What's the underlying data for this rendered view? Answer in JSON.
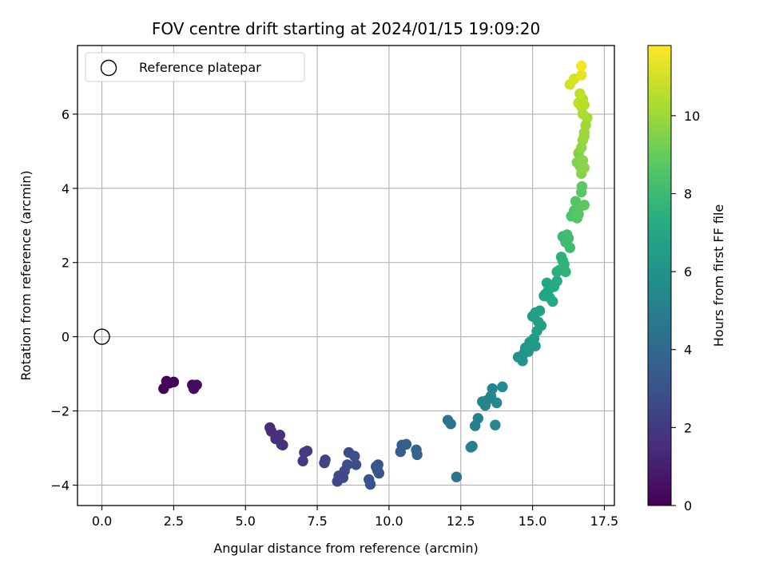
{
  "chart_data": {
    "type": "scatter",
    "title": "FOV centre drift starting at 2024/01/15 19:09:20",
    "xlabel": "Angular distance from reference (arcmin)",
    "ylabel": "Rotation from reference (arcmin)",
    "xlim": [
      -0.85,
      17.85
    ],
    "ylim": [
      -4.55,
      7.85
    ],
    "xticks": [
      0.0,
      2.5,
      5.0,
      7.5,
      10.0,
      12.5,
      15.0,
      17.5
    ],
    "xtick_labels": [
      "0.0",
      "2.5",
      "5.0",
      "7.5",
      "10.0",
      "12.5",
      "15.0",
      "17.5"
    ],
    "yticks": [
      -4,
      -2,
      0,
      2,
      4,
      6
    ],
    "ytick_labels": [
      "−4",
      "−2",
      "0",
      "2",
      "4",
      "6"
    ],
    "grid": true,
    "legend": {
      "placement": "upper-left",
      "entries": [
        "Reference platepar"
      ]
    },
    "reference_point": {
      "x": 0.0,
      "y": 0.0,
      "label": "Reference platepar"
    },
    "colorbar": {
      "label": "Hours from first FF file",
      "colormap": "viridis",
      "range": [
        0,
        11.8
      ],
      "ticks": [
        0,
        2,
        4,
        6,
        8,
        10
      ],
      "tick_labels": [
        "0",
        "2",
        "4",
        "6",
        "8",
        "10"
      ]
    },
    "points": [
      {
        "x": 2.15,
        "y": -1.4,
        "h": 0.05
      },
      {
        "x": 2.25,
        "y": -1.2,
        "h": 0.1
      },
      {
        "x": 2.35,
        "y": -1.25,
        "h": 0.15
      },
      {
        "x": 2.5,
        "y": -1.22,
        "h": 0.2
      },
      {
        "x": 3.15,
        "y": -1.3,
        "h": 0.3
      },
      {
        "x": 3.2,
        "y": -1.4,
        "h": 0.35
      },
      {
        "x": 3.3,
        "y": -1.3,
        "h": 0.4
      },
      {
        "x": 5.85,
        "y": -2.45,
        "h": 1.5
      },
      {
        "x": 5.9,
        "y": -2.55,
        "h": 1.55
      },
      {
        "x": 6.05,
        "y": -2.75,
        "h": 1.6
      },
      {
        "x": 6.2,
        "y": -2.65,
        "h": 1.65
      },
      {
        "x": 6.25,
        "y": -2.9,
        "h": 1.7
      },
      {
        "x": 6.3,
        "y": -2.92,
        "h": 1.72
      },
      {
        "x": 7.0,
        "y": -3.35,
        "h": 2.0
      },
      {
        "x": 7.05,
        "y": -3.12,
        "h": 2.02
      },
      {
        "x": 7.15,
        "y": -3.08,
        "h": 2.05
      },
      {
        "x": 7.75,
        "y": -3.4,
        "h": 2.3
      },
      {
        "x": 7.78,
        "y": -3.32,
        "h": 2.32
      },
      {
        "x": 8.2,
        "y": -3.9,
        "h": 2.5
      },
      {
        "x": 8.25,
        "y": -3.75,
        "h": 2.55
      },
      {
        "x": 8.4,
        "y": -3.8,
        "h": 2.6
      },
      {
        "x": 8.45,
        "y": -3.62,
        "h": 2.65
      },
      {
        "x": 8.55,
        "y": -3.45,
        "h": 2.7
      },
      {
        "x": 8.6,
        "y": -3.12,
        "h": 2.72
      },
      {
        "x": 8.8,
        "y": -3.22,
        "h": 2.8
      },
      {
        "x": 8.85,
        "y": -3.45,
        "h": 2.82
      },
      {
        "x": 9.3,
        "y": -3.85,
        "h": 3.0
      },
      {
        "x": 9.35,
        "y": -3.98,
        "h": 3.05
      },
      {
        "x": 9.55,
        "y": -3.5,
        "h": 3.1
      },
      {
        "x": 9.6,
        "y": -3.6,
        "h": 3.12
      },
      {
        "x": 9.65,
        "y": -3.68,
        "h": 3.15
      },
      {
        "x": 9.62,
        "y": -3.45,
        "h": 3.14
      },
      {
        "x": 10.4,
        "y": -3.1,
        "h": 3.5
      },
      {
        "x": 10.45,
        "y": -2.92,
        "h": 3.55
      },
      {
        "x": 10.6,
        "y": -2.9,
        "h": 3.6
      },
      {
        "x": 10.95,
        "y": -3.05,
        "h": 3.75
      },
      {
        "x": 10.98,
        "y": -3.18,
        "h": 3.77
      },
      {
        "x": 12.05,
        "y": -2.25,
        "h": 4.5
      },
      {
        "x": 12.15,
        "y": -2.35,
        "h": 4.55
      },
      {
        "x": 12.35,
        "y": -3.78,
        "h": 4.6
      },
      {
        "x": 12.85,
        "y": -2.98,
        "h": 5.0
      },
      {
        "x": 12.9,
        "y": -2.95,
        "h": 5.02
      },
      {
        "x": 13.0,
        "y": -2.4,
        "h": 5.1
      },
      {
        "x": 13.1,
        "y": -2.2,
        "h": 5.15
      },
      {
        "x": 13.25,
        "y": -1.75,
        "h": 5.2
      },
      {
        "x": 13.35,
        "y": -1.85,
        "h": 5.25
      },
      {
        "x": 13.4,
        "y": -1.72,
        "h": 5.28
      },
      {
        "x": 13.55,
        "y": -1.6,
        "h": 5.35
      },
      {
        "x": 13.6,
        "y": -1.4,
        "h": 5.4
      },
      {
        "x": 13.7,
        "y": -2.38,
        "h": 5.45
      },
      {
        "x": 13.75,
        "y": -1.78,
        "h": 5.5
      },
      {
        "x": 13.95,
        "y": -1.35,
        "h": 5.6
      },
      {
        "x": 14.5,
        "y": -0.55,
        "h": 6.0
      },
      {
        "x": 14.65,
        "y": -0.65,
        "h": 6.05
      },
      {
        "x": 14.7,
        "y": -0.45,
        "h": 6.1
      },
      {
        "x": 14.75,
        "y": -0.3,
        "h": 6.15
      },
      {
        "x": 14.85,
        "y": -0.4,
        "h": 6.2
      },
      {
        "x": 14.9,
        "y": -0.15,
        "h": 6.25
      },
      {
        "x": 15.0,
        "y": -0.2,
        "h": 6.3
      },
      {
        "x": 15.05,
        "y": -0.05,
        "h": 6.35
      },
      {
        "x": 15.1,
        "y": -0.25,
        "h": 6.38
      },
      {
        "x": 15.0,
        "y": 0.55,
        "h": 6.5
      },
      {
        "x": 15.1,
        "y": 0.65,
        "h": 6.55
      },
      {
        "x": 15.2,
        "y": 0.4,
        "h": 6.6
      },
      {
        "x": 15.25,
        "y": 0.7,
        "h": 6.62
      },
      {
        "x": 15.3,
        "y": 0.3,
        "h": 6.65
      },
      {
        "x": 15.15,
        "y": 0.15,
        "h": 6.58
      },
      {
        "x": 15.4,
        "y": 1.1,
        "h": 7.0
      },
      {
        "x": 15.5,
        "y": 1.45,
        "h": 7.05
      },
      {
        "x": 15.55,
        "y": 1.25,
        "h": 7.1
      },
      {
        "x": 15.6,
        "y": 1.05,
        "h": 7.12
      },
      {
        "x": 15.7,
        "y": 0.95,
        "h": 7.15
      },
      {
        "x": 15.75,
        "y": 1.35,
        "h": 7.2
      },
      {
        "x": 15.85,
        "y": 1.5,
        "h": 7.25
      },
      {
        "x": 15.45,
        "y": 1.15,
        "h": 7.02
      },
      {
        "x": 15.85,
        "y": 1.75,
        "h": 7.4
      },
      {
        "x": 15.95,
        "y": 1.8,
        "h": 7.45
      },
      {
        "x": 16.05,
        "y": 2.05,
        "h": 7.5
      },
      {
        "x": 16.1,
        "y": 1.95,
        "h": 7.52
      },
      {
        "x": 16.15,
        "y": 1.75,
        "h": 7.55
      },
      {
        "x": 16.0,
        "y": 2.15,
        "h": 7.48
      },
      {
        "x": 16.05,
        "y": 2.7,
        "h": 8.0
      },
      {
        "x": 16.15,
        "y": 2.55,
        "h": 8.05
      },
      {
        "x": 16.25,
        "y": 2.65,
        "h": 8.1
      },
      {
        "x": 16.3,
        "y": 2.4,
        "h": 8.12
      },
      {
        "x": 16.2,
        "y": 2.75,
        "h": 8.08
      },
      {
        "x": 16.35,
        "y": 3.25,
        "h": 8.5
      },
      {
        "x": 16.45,
        "y": 3.4,
        "h": 8.55
      },
      {
        "x": 16.5,
        "y": 3.65,
        "h": 8.6
      },
      {
        "x": 16.55,
        "y": 3.2,
        "h": 8.62
      },
      {
        "x": 16.6,
        "y": 3.3,
        "h": 8.65
      },
      {
        "x": 16.65,
        "y": 3.5,
        "h": 8.7
      },
      {
        "x": 16.7,
        "y": 3.9,
        "h": 8.75
      },
      {
        "x": 16.8,
        "y": 3.55,
        "h": 8.8
      },
      {
        "x": 16.72,
        "y": 4.05,
        "h": 8.78
      },
      {
        "x": 16.55,
        "y": 4.7,
        "h": 9.5
      },
      {
        "x": 16.6,
        "y": 4.95,
        "h": 9.55
      },
      {
        "x": 16.65,
        "y": 4.6,
        "h": 9.6
      },
      {
        "x": 16.7,
        "y": 4.4,
        "h": 9.65
      },
      {
        "x": 16.75,
        "y": 4.75,
        "h": 9.7
      },
      {
        "x": 16.8,
        "y": 4.55,
        "h": 9.75
      },
      {
        "x": 16.7,
        "y": 5.1,
        "h": 9.8
      },
      {
        "x": 16.75,
        "y": 5.3,
        "h": 9.9
      },
      {
        "x": 16.8,
        "y": 5.5,
        "h": 10.0
      },
      {
        "x": 16.85,
        "y": 5.7,
        "h": 10.1
      },
      {
        "x": 16.9,
        "y": 5.9,
        "h": 10.2
      },
      {
        "x": 16.75,
        "y": 6.0,
        "h": 10.3
      },
      {
        "x": 16.8,
        "y": 5.4,
        "h": 10.05
      },
      {
        "x": 16.7,
        "y": 6.2,
        "h": 10.4
      },
      {
        "x": 16.75,
        "y": 6.4,
        "h": 10.5
      },
      {
        "x": 16.6,
        "y": 6.3,
        "h": 10.6
      },
      {
        "x": 16.65,
        "y": 6.55,
        "h": 10.7
      },
      {
        "x": 16.8,
        "y": 6.25,
        "h": 10.55
      },
      {
        "x": 16.3,
        "y": 6.8,
        "h": 11.0
      },
      {
        "x": 16.45,
        "y": 6.95,
        "h": 11.1
      },
      {
        "x": 16.7,
        "y": 7.05,
        "h": 11.3
      },
      {
        "x": 16.7,
        "y": 7.3,
        "h": 11.6
      }
    ]
  }
}
